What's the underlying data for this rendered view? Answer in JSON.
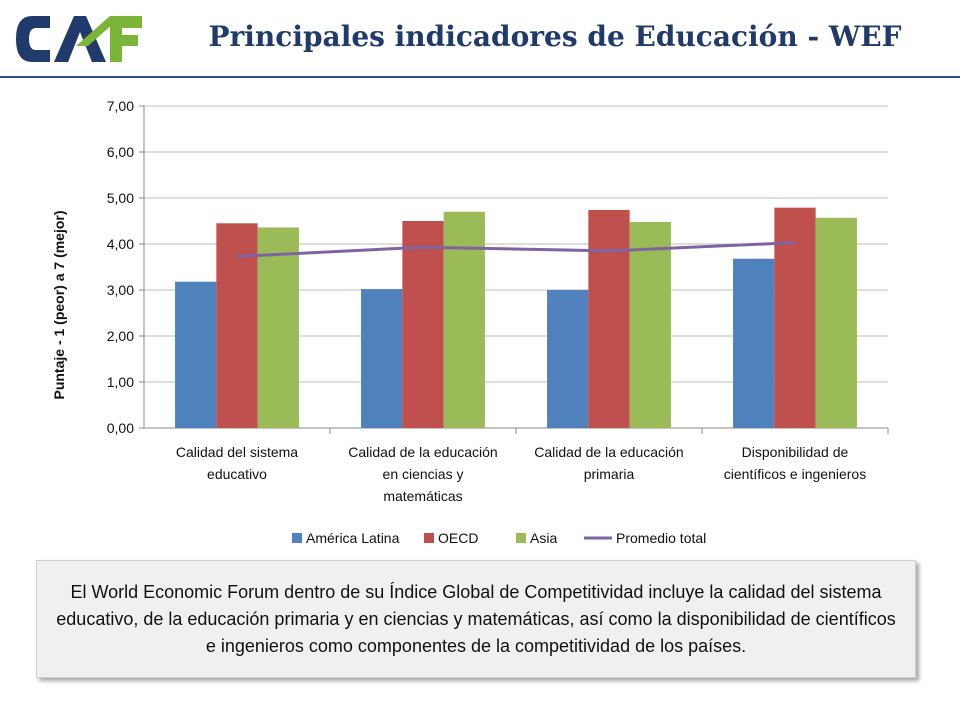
{
  "header": {
    "logo_text": "CAF",
    "title": "Principales indicadores de Educación - WEF"
  },
  "colors": {
    "logo_navy": "#1f3a6b",
    "logo_green": "#7bb537",
    "title": "#1f3a6b"
  },
  "chart_data": {
    "type": "bar",
    "ylabel": "Puntaje - 1 (peor) a 7 (mejor)",
    "ylim": [
      0,
      7
    ],
    "yticks": [
      "0,00",
      "1,00",
      "2,00",
      "3,00",
      "4,00",
      "5,00",
      "6,00",
      "7,00"
    ],
    "grid": true,
    "legend_position": "bottom",
    "categories": [
      [
        "Calidad del sistema",
        "educativo"
      ],
      [
        "Calidad de la educación",
        "en ciencias y",
        "matemáticas"
      ],
      [
        "Calidad de la educación",
        "primaria"
      ],
      [
        "Disponibilidad de",
        "científicos e ingenieros"
      ]
    ],
    "series": [
      {
        "name": "América Latina",
        "kind": "bar",
        "color": "#4f81bd",
        "values": [
          3.18,
          3.02,
          3.0,
          3.68
        ]
      },
      {
        "name": "OECD",
        "kind": "bar",
        "color": "#c0504d",
        "values": [
          4.45,
          4.5,
          4.74,
          4.79
        ]
      },
      {
        "name": "Asia",
        "kind": "bar",
        "color": "#9bbb59",
        "values": [
          4.36,
          4.7,
          4.48,
          4.57
        ]
      },
      {
        "name": "Promedio total",
        "kind": "line",
        "color": "#8064a2",
        "values": [
          3.73,
          3.93,
          3.85,
          4.03
        ]
      }
    ]
  },
  "note": {
    "text": "El World Economic Forum dentro de su Índice Global de Competitividad incluye la calidad del sistema educativo, de la educación primaria y en ciencias y matemáticas, así como la disponibilidad de científicos e ingenieros como componentes de la competitividad de los países."
  }
}
